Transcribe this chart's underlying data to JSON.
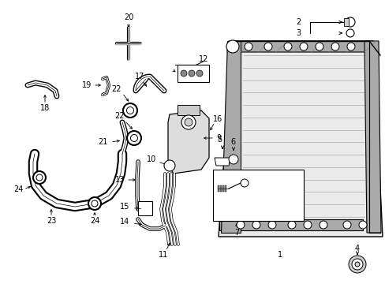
{
  "bg_color": "#ffffff",
  "radiator_bg": "#e8e8e8",
  "line_color": "#000000",
  "fig_width": 4.89,
  "fig_height": 3.6,
  "dpi": 100
}
